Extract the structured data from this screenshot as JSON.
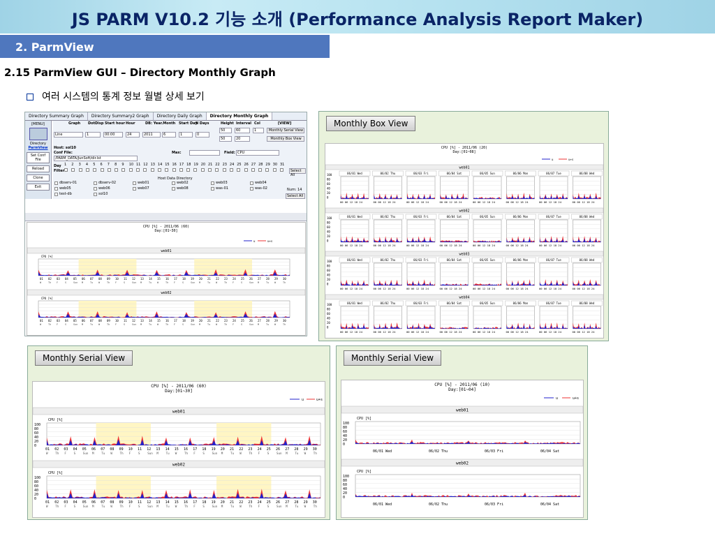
{
  "banner": {
    "title": "JS PARM V10.2 기능 소개 (Performance Analysis Report Maker)"
  },
  "section": {
    "label": "2.  ParmView"
  },
  "heading": "2.15  ParmView  GUI – Directory Monthly Graph",
  "bullet": "여러 시스템의 통계 정보 월별 상세 보기",
  "gui": {
    "tabs": [
      "Directory Summary Graph",
      "Directory Summary2 Graph",
      "Directory Daily Graph",
      "Directory Monthly Graph"
    ],
    "menu": {
      "header": "[MENU]",
      "dir_label": "Directory",
      "parmview": "ParmView",
      "set_conf": "Set Conf File",
      "reload": "Reload",
      "clone": "Clone",
      "exit": "Exit"
    },
    "headers": [
      "Graph",
      "DotDisp",
      "Start hour",
      "Hour",
      "DB: Year.Month",
      "Start Day",
      "N Days",
      "Height",
      "Interval",
      "Col",
      "[VIEW]"
    ],
    "values": {
      "graph": "Line",
      "dotdisp": "1",
      "start_hour": "00:00",
      "hour": "24",
      "year": "2011",
      "month": "6",
      "start_day": "1",
      "ndays": "0",
      "height": "50",
      "interval": "60",
      "col": "1",
      "height2": "50",
      "interval2": "20"
    },
    "buttons": {
      "serial": "Monthly Serial View",
      "box": "Monthly Box View",
      "select_all": "Select All",
      "select_all2": "Select All"
    },
    "host": "Host: sol10",
    "conf_label": "Conf File:",
    "conf_value": "/PARM_DATA/JunSoft/dir.lst",
    "max_label": "Max:",
    "field_label": "Field:",
    "field_value": "CPU",
    "day_label": "Day",
    "filter_label": "Filter:",
    "days": [
      "1",
      "2",
      "3",
      "4",
      "5",
      "6",
      "7",
      "8",
      "9",
      "10",
      "11",
      "12",
      "13",
      "14",
      "15",
      "16",
      "17",
      "18",
      "19",
      "20",
      "21",
      "22",
      "23",
      "24",
      "25",
      "26",
      "27",
      "28",
      "29",
      "30",
      "31"
    ],
    "host_dir_title": "Host Data Directory",
    "hosts": [
      "dbserv-01",
      "dbserv-02",
      "web01",
      "web02",
      "web03",
      "web04",
      "web05",
      "web06",
      "web07",
      "web08",
      "was-01",
      "was-02",
      "test-db",
      "sol10"
    ],
    "num_label": "Num: 14",
    "chart_title": "CPU [%] - 2011/06 (60)",
    "chart_sub": "Day:[01~30]",
    "legend": [
      "u",
      "u+s"
    ],
    "hosts_shown": [
      "web01",
      "web02"
    ],
    "cpu_label": "CPU [%]"
  },
  "box_panel": {
    "title": "Monthly Box View",
    "chart_title": "CPU [%] - 2011/06 (20)",
    "chart_sub": "Day:[01~08]",
    "legend": [
      "u",
      "u+s"
    ],
    "hosts": [
      "web01",
      "web02",
      "web03",
      "web04"
    ],
    "days": [
      "06/01 Wed",
      "06/02 Thu",
      "06/03 Fri",
      "06/04 Sat",
      "06/05 Sun",
      "06/06 Mon",
      "06/07 Tue",
      "06/08 Wed"
    ],
    "yticks": [
      "100",
      "80",
      "60",
      "40",
      "20",
      "0"
    ],
    "xticks": "00 06 12 18 24"
  },
  "serial_panel": {
    "title": "Monthly Serial View",
    "chart_title": "CPU [%] - 2011/06 (60)",
    "chart_sub": "Day:[01~30]",
    "legend": [
      "u",
      "u+s"
    ],
    "hosts": [
      "web01",
      "web02"
    ],
    "cpu_label": "CPU [%]",
    "yticks": [
      "100",
      "80",
      "60",
      "40",
      "20",
      "0"
    ],
    "days": [
      "01",
      "02",
      "03",
      "04",
      "05",
      "06",
      "07",
      "08",
      "09",
      "10",
      "11",
      "12",
      "13",
      "14",
      "15",
      "16",
      "17",
      "18",
      "19",
      "20",
      "21",
      "22",
      "23",
      "24",
      "25",
      "26",
      "27",
      "28",
      "29",
      "30"
    ],
    "weekdays": [
      "W",
      "Th",
      "F",
      "S",
      "Sun",
      "M",
      "Tu",
      "W",
      "Th",
      "F",
      "S",
      "Sun",
      "M",
      "Tu",
      "W",
      "Th",
      "F",
      "S",
      "Sun",
      "M",
      "Tu",
      "W",
      "Th",
      "F",
      "S",
      "Sun",
      "M",
      "Tu",
      "W",
      "Th"
    ]
  },
  "daily_panel": {
    "title": "Monthly Serial View",
    "chart_title": "CPU [%] - 2011/06 (10)",
    "chart_sub": "Day:[01~04]",
    "legend": [
      "u",
      "u+s"
    ],
    "hosts": [
      "web01",
      "web02"
    ],
    "cpu_label": "CPU [%]",
    "yticks": [
      "100",
      "80",
      "60",
      "40",
      "20",
      "0"
    ],
    "days": [
      "06/01 Wed",
      "06/02 Thu",
      "06/03 Fri",
      "06/04 Sat"
    ]
  }
}
